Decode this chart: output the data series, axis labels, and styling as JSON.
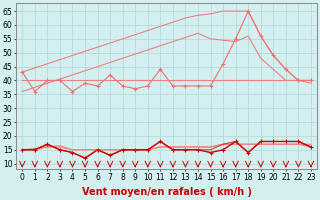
{
  "xlabel": "Vent moyen/en rafales ( km/h )",
  "x": [
    0,
    1,
    2,
    3,
    4,
    5,
    6,
    7,
    8,
    9,
    10,
    11,
    12,
    13,
    14,
    15,
    16,
    17,
    18,
    19,
    20,
    21,
    22,
    23
  ],
  "series": [
    {
      "name": "trend_upper",
      "y": [
        43,
        44.5,
        46,
        47.5,
        49,
        50.5,
        52,
        53.5,
        55,
        56.5,
        58,
        59.5,
        61,
        62.5,
        63.5,
        64,
        65,
        65,
        65,
        56,
        49,
        44,
        40,
        40
      ],
      "color": "#f08080",
      "lw": 0.8,
      "marker": null,
      "zorder": 1
    },
    {
      "name": "trend_lower",
      "y": [
        36,
        37.5,
        39,
        40.5,
        42,
        43.5,
        45,
        46.5,
        48,
        49.5,
        51,
        52.5,
        54,
        55.5,
        57,
        55,
        54.5,
        54,
        56,
        48,
        44,
        40,
        40,
        39
      ],
      "color": "#f08080",
      "lw": 0.8,
      "marker": null,
      "zorder": 1
    },
    {
      "name": "rafales_markers",
      "y": [
        43,
        36,
        40,
        40,
        36,
        39,
        38,
        42,
        38,
        37,
        38,
        44,
        38,
        38,
        38,
        38,
        46,
        55,
        65,
        56,
        49,
        44,
        40,
        40
      ],
      "color": "#f07070",
      "lw": 0.8,
      "marker": "+",
      "ms": 3,
      "zorder": 3
    },
    {
      "name": "flat_line_upper",
      "y": [
        40,
        40,
        40,
        40,
        40,
        40,
        40,
        40,
        40,
        40,
        40,
        40,
        40,
        40,
        40,
        40,
        40,
        40,
        40,
        40,
        40,
        40,
        40,
        40
      ],
      "color": "#f08080",
      "lw": 0.8,
      "marker": null,
      "zorder": 1
    },
    {
      "name": "vent_trend_lower2",
      "y": [
        15,
        15.5,
        16,
        16.5,
        15,
        15,
        15,
        15,
        15,
        15,
        15,
        16,
        16,
        16,
        16,
        16,
        17,
        17,
        17,
        17,
        17,
        17,
        17,
        17
      ],
      "color": "#f08080",
      "lw": 0.8,
      "marker": null,
      "zorder": 2
    },
    {
      "name": "vent_flat",
      "y": [
        15,
        15,
        16,
        16,
        15,
        15,
        15,
        15,
        15,
        15,
        15,
        16,
        16,
        16,
        16,
        16,
        17,
        17,
        17,
        17,
        17,
        17,
        17,
        16
      ],
      "color": "#f08080",
      "lw": 0.8,
      "marker": null,
      "zorder": 2
    },
    {
      "name": "vent_moyen_dark",
      "y": [
        15,
        15,
        17,
        15,
        14,
        12,
        15,
        13,
        15,
        15,
        15,
        18,
        15,
        15,
        15,
        14,
        15,
        18,
        14,
        18,
        18,
        18,
        18,
        16
      ],
      "color": "#cc0000",
      "lw": 1.0,
      "marker": "+",
      "ms": 3,
      "zorder": 4
    },
    {
      "name": "vent_moyen_dark2",
      "y": [
        15,
        15,
        17,
        15,
        14,
        12,
        15,
        13,
        15,
        15,
        15,
        18,
        15,
        15,
        15,
        15,
        17,
        18,
        14,
        18,
        18,
        18,
        18,
        16
      ],
      "color": "#dd2222",
      "lw": 0.7,
      "marker": null,
      "zorder": 3
    }
  ],
  "arrows_x": [
    0,
    1,
    2,
    3,
    4,
    5,
    6,
    7,
    8,
    9,
    10,
    11,
    12,
    13,
    14,
    15,
    16,
    17,
    18,
    19,
    20,
    21,
    22,
    23
  ],
  "ylim": [
    8,
    68
  ],
  "yticks": [
    10,
    15,
    20,
    25,
    30,
    35,
    40,
    45,
    50,
    55,
    60,
    65
  ],
  "bg_color": "#d4efef",
  "grid_color": "#b0d8d8",
  "arrow_color": "#cc0000",
  "xlabel_color": "#cc0000",
  "xlabel_fontsize": 7,
  "tick_fontsize": 5.5
}
